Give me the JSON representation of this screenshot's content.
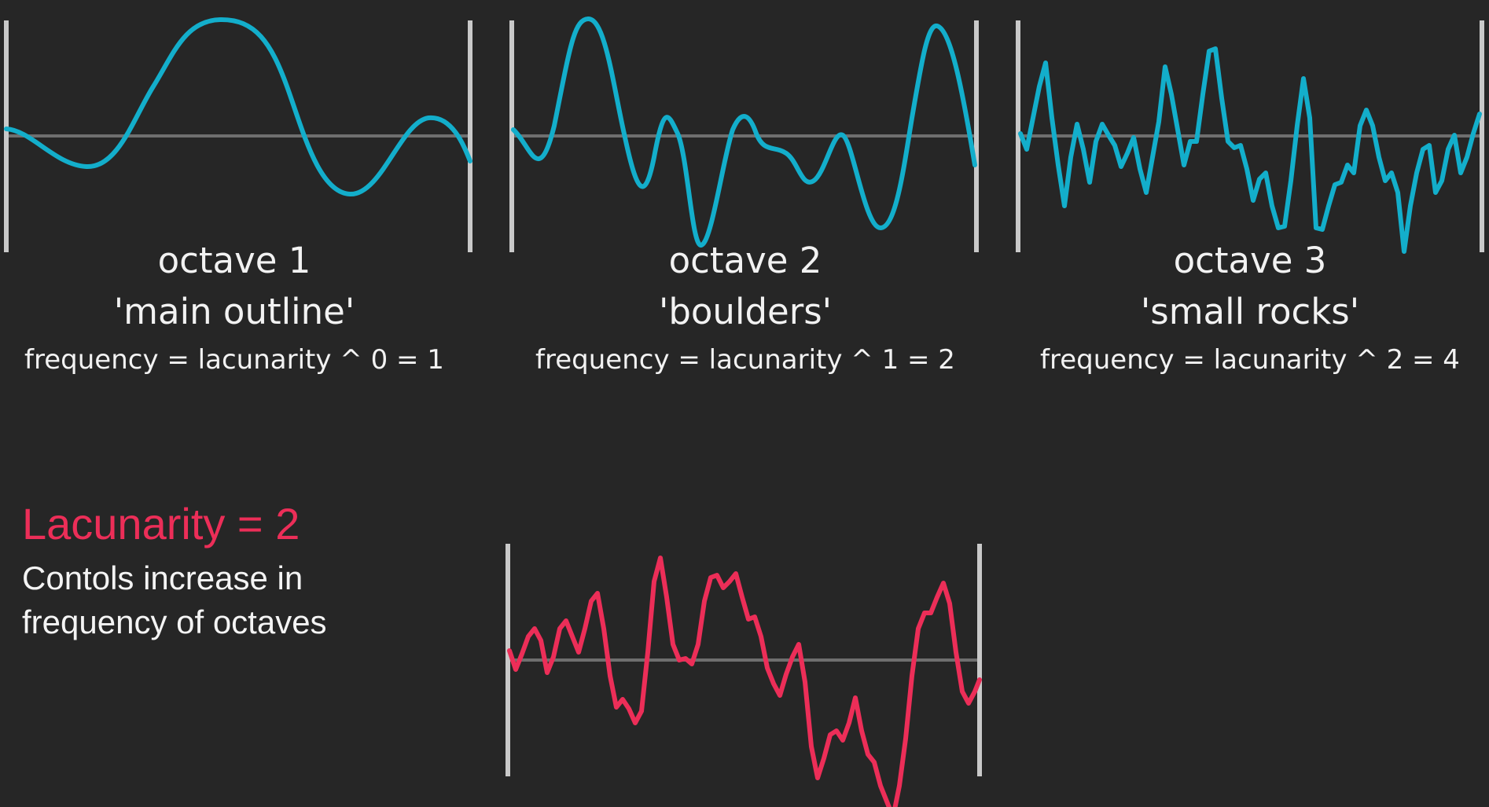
{
  "octaves": [
    {
      "title": "octave 1",
      "nickname": "'main outline'",
      "formula": "frequency = lacunarity ^ 0 = 1",
      "curve_color": "#13aecb",
      "frequency": 1
    },
    {
      "title": "octave 2",
      "nickname": "'boulders'",
      "formula": "frequency = lacunarity ^ 1 = 2",
      "curve_color": "#13aecb",
      "frequency": 2
    },
    {
      "title": "octave 3",
      "nickname": "'small rocks'",
      "formula": "frequency = lacunarity ^ 2 = 4",
      "curve_color": "#13aecb",
      "frequency": 4
    }
  ],
  "lacunarity": {
    "label": "Lacunarity = 2",
    "description_lines": [
      "Contols increase in",
      "frequency of octaves"
    ],
    "accent_color": "#ec2e58"
  },
  "combined": {
    "curve_color": "#ec2e58"
  }
}
